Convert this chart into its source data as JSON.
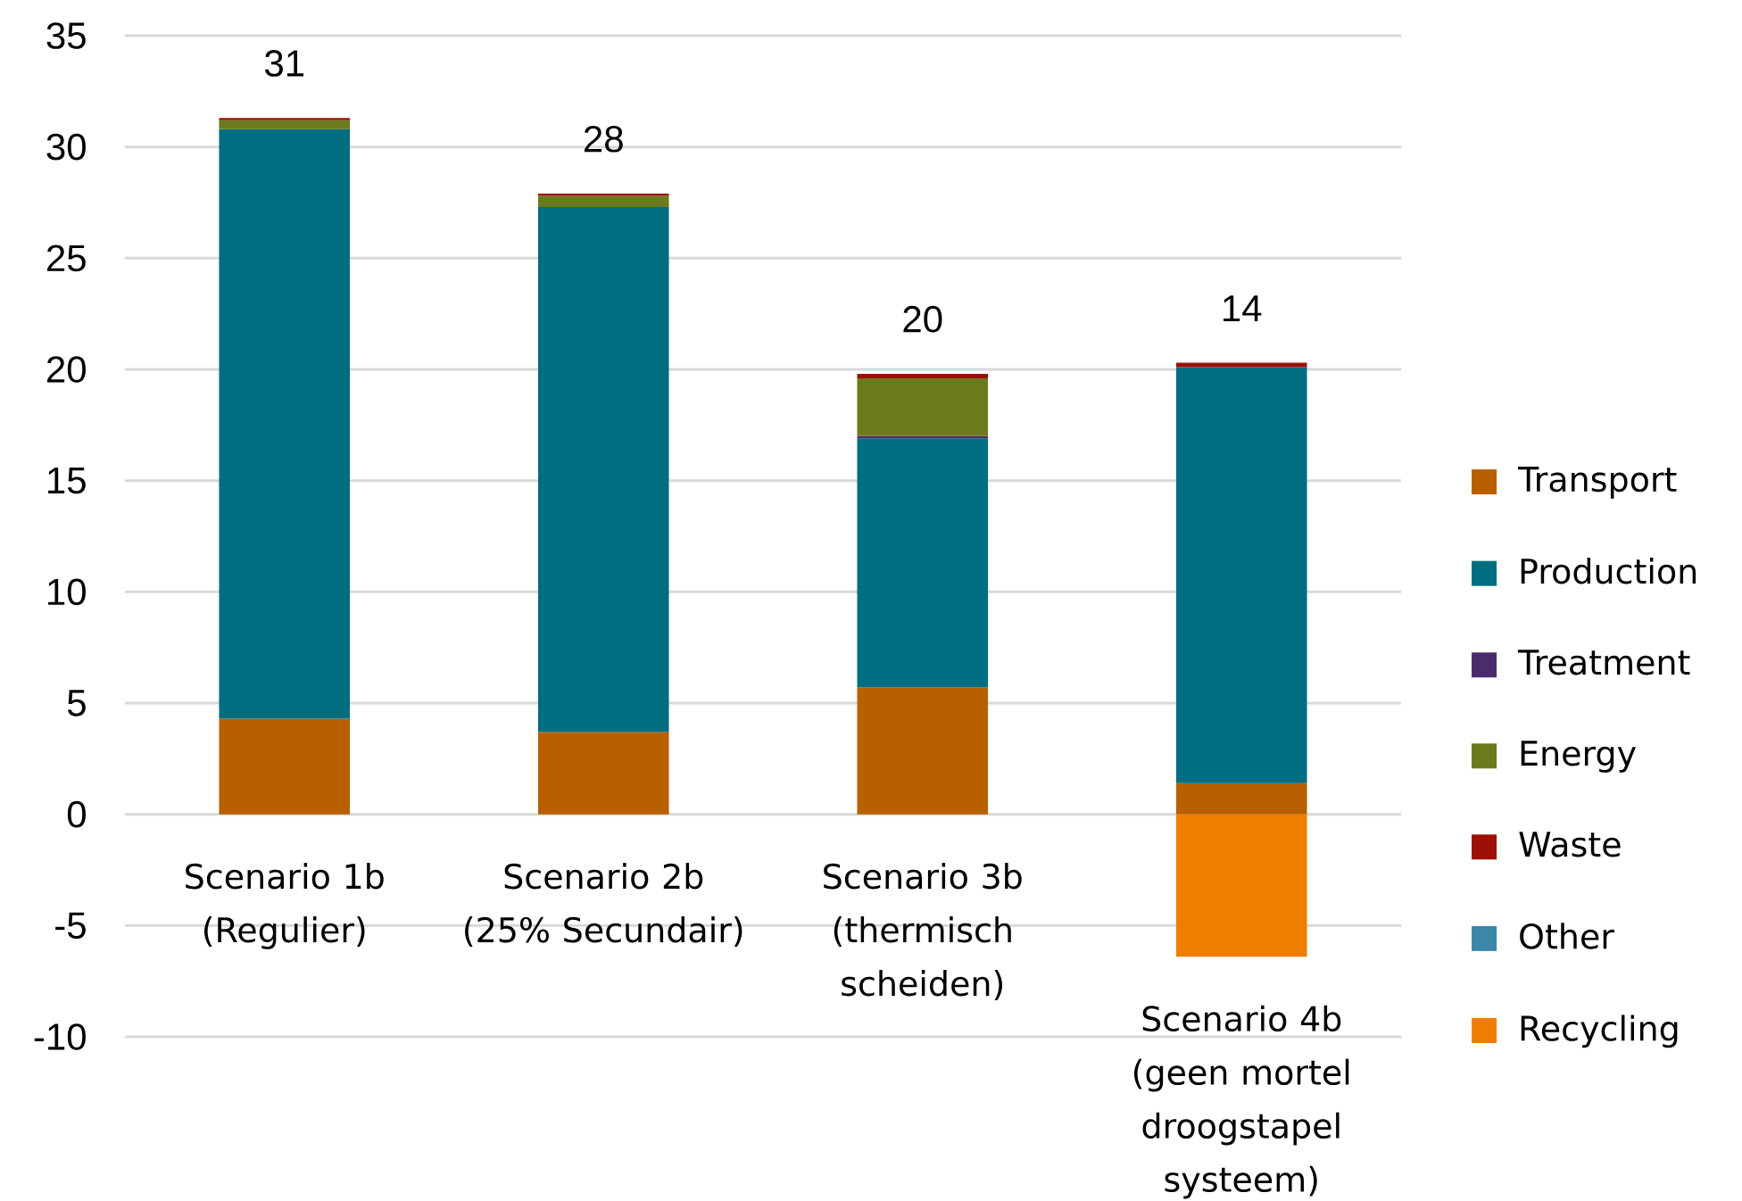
{
  "chart_data": {
    "type": "bar",
    "stacked": true,
    "categories": [
      "Scenario 1b (Regulier)",
      "Scenario 2b (25% Secundair)",
      "Scenario 3b (thermisch scheiden)",
      "Scenario 4b (geen mortel droogstapel systeem)"
    ],
    "series": [
      {
        "name": "Transport",
        "color": "#b86000",
        "values": [
          4.3,
          3.7,
          5.7,
          1.4
        ]
      },
      {
        "name": "Production",
        "color": "#006d80",
        "values": [
          26.5,
          23.6,
          11.2,
          18.7
        ]
      },
      {
        "name": "Treatment",
        "color": "#4b2c6a",
        "values": [
          null,
          null,
          0.1,
          null
        ]
      },
      {
        "name": "Energy",
        "color": "#6b7a1c",
        "values": [
          0.4,
          0.5,
          2.6,
          null
        ]
      },
      {
        "name": "Waste",
        "color": "#9c1006",
        "values": [
          0.1,
          0.1,
          0.2,
          0.2
        ]
      },
      {
        "name": "Other",
        "color": "#3a87a6",
        "values": [
          null,
          null,
          null,
          null
        ]
      },
      {
        "name": "Recycling",
        "color": "#ef7d00",
        "values": [
          null,
          null,
          null,
          -6.4
        ]
      }
    ],
    "ylim": [
      -10,
      35
    ],
    "yticks": [
      -10,
      -5,
      0,
      5,
      10,
      15,
      20,
      25,
      30,
      35
    ],
    "grid": "y",
    "legend": "right",
    "totals": [
      "31",
      "28",
      "20",
      "14"
    ]
  }
}
